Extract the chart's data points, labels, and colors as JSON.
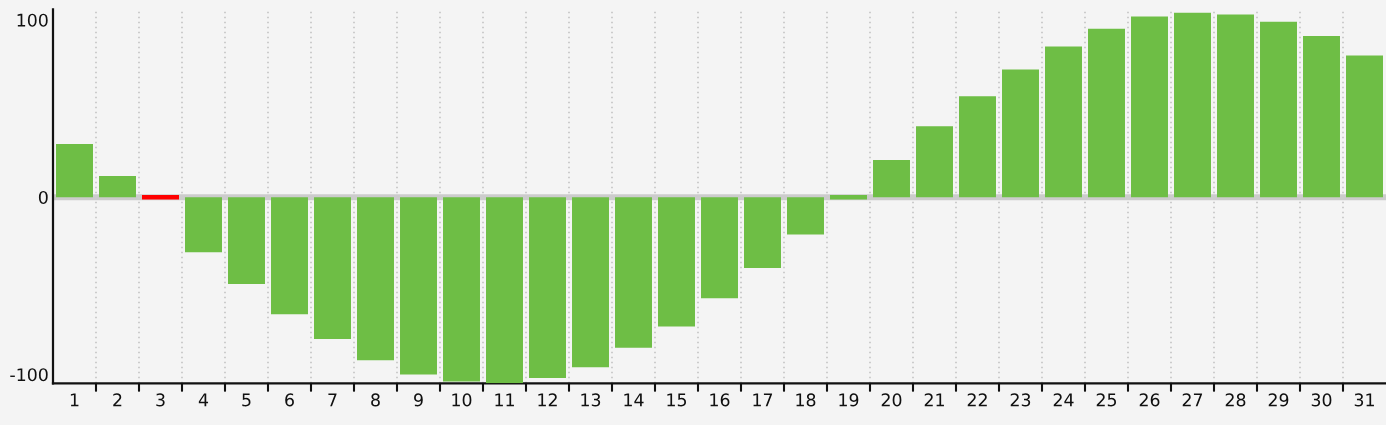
{
  "chart_data": {
    "type": "bar",
    "categories": [
      "1",
      "2",
      "3",
      "4",
      "5",
      "6",
      "7",
      "8",
      "9",
      "10",
      "11",
      "12",
      "13",
      "14",
      "15",
      "16",
      "17",
      "18",
      "19",
      "20",
      "21",
      "22",
      "23",
      "24",
      "25",
      "26",
      "27",
      "28",
      "29",
      "30",
      "31"
    ],
    "values": [
      30,
      12,
      0,
      -31,
      -49,
      -66,
      -80,
      -92,
      -100,
      -104,
      -105,
      -102,
      -96,
      -85,
      -73,
      -57,
      -40,
      -21,
      0,
      21,
      40,
      57,
      72,
      85,
      95,
      102,
      104,
      103,
      99,
      91,
      80
    ],
    "colors": [
      "#6ebe45",
      "#6ebe45",
      "#ff0000",
      "#6ebe45",
      "#6ebe45",
      "#6ebe45",
      "#6ebe45",
      "#6ebe45",
      "#6ebe45",
      "#6ebe45",
      "#6ebe45",
      "#6ebe45",
      "#6ebe45",
      "#6ebe45",
      "#6ebe45",
      "#6ebe45",
      "#6ebe45",
      "#6ebe45",
      "#6ebe45",
      "#6ebe45",
      "#6ebe45",
      "#6ebe45",
      "#6ebe45",
      "#6ebe45",
      "#6ebe45",
      "#6ebe45",
      "#6ebe45",
      "#6ebe45",
      "#6ebe45",
      "#6ebe45",
      "#6ebe45"
    ],
    "ylim": [
      -105,
      106
    ],
    "yticks": [
      -100,
      0,
      100
    ],
    "grid": "x",
    "ref_lines": [
      {
        "axis": "y",
        "value": 0,
        "color": "#cccccc"
      }
    ]
  }
}
